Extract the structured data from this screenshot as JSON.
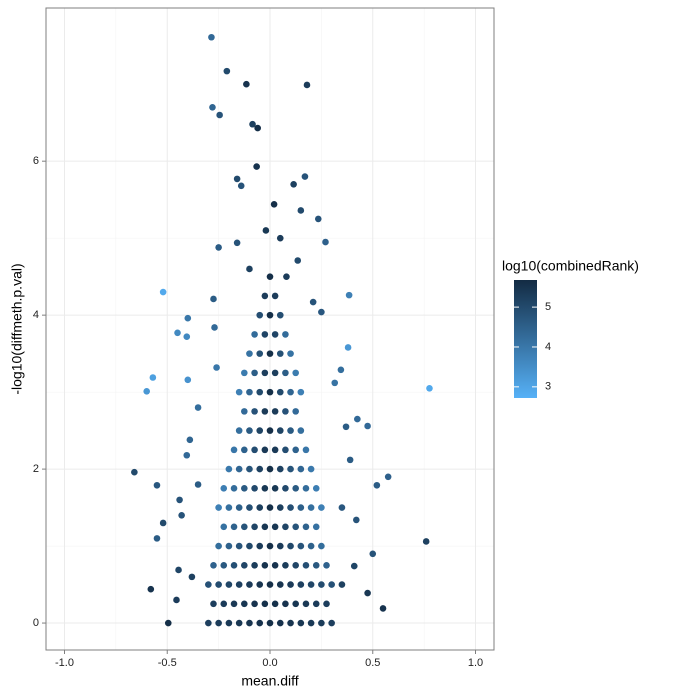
{
  "chart_data": {
    "type": "scatter",
    "x_label": "mean.diff",
    "y_label": "-log10(diffmeth.p.val)",
    "color_label": "log10(combinedRank)",
    "xlim": [
      -1.09,
      1.09
    ],
    "ylim": [
      -0.35,
      7.99
    ],
    "colorlim": [
      2.72,
      5.68
    ],
    "xticks": [
      {
        "value": -1.0,
        "label": "-1.0"
      },
      -0.5,
      {
        "value": 0,
        "label": "0.0"
      },
      0.5,
      {
        "value": 1.0,
        "label": "1.0"
      }
    ],
    "yticks": [
      0,
      2,
      4,
      6
    ],
    "color_ticks": [
      3,
      4,
      5
    ],
    "colorscale": [
      "#56B1F7",
      "#132B43"
    ],
    "grid": true,
    "x": [
      -0.3,
      -0.25,
      -0.2,
      -0.15,
      -0.1,
      -0.05,
      0,
      0.05,
      0.1,
      0.15,
      0.2,
      0.25,
      0.3,
      -0.275,
      -0.225,
      -0.175,
      -0.125,
      -0.075,
      -0.025,
      0.025,
      0.075,
      0.125,
      0.175,
      0.225,
      0.275,
      -0.3,
      -0.25,
      -0.2,
      -0.15,
      -0.1,
      -0.05,
      0,
      0.05,
      0.1,
      0.15,
      0.2,
      0.25,
      0.3,
      -0.275,
      -0.225,
      -0.175,
      -0.125,
      -0.075,
      -0.025,
      0.025,
      0.075,
      0.125,
      0.175,
      0.225,
      0.275,
      -0.25,
      -0.2,
      -0.15,
      -0.1,
      -0.05,
      0,
      0.05,
      0.1,
      0.15,
      0.2,
      0.25,
      -0.225,
      -0.175,
      -0.125,
      -0.075,
      -0.025,
      0.025,
      0.075,
      0.125,
      0.175,
      0.225,
      -0.25,
      -0.2,
      -0.15,
      -0.1,
      -0.05,
      0,
      0.05,
      0.1,
      0.15,
      0.2,
      0.25,
      -0.225,
      -0.175,
      -0.125,
      -0.075,
      -0.025,
      0.025,
      0.075,
      0.125,
      0.175,
      0.225,
      -0.2,
      -0.15,
      -0.1,
      -0.05,
      0,
      0.05,
      0.1,
      0.15,
      0.2,
      -0.175,
      -0.125,
      -0.075,
      -0.025,
      0.025,
      0.075,
      0.125,
      0.175,
      -0.15,
      -0.1,
      -0.05,
      0,
      0.05,
      0.1,
      0.15,
      -0.125,
      -0.075,
      -0.025,
      0.025,
      0.075,
      0.125,
      -0.15,
      -0.1,
      -0.05,
      0,
      0.05,
      0.1,
      0.15,
      -0.125,
      -0.075,
      -0.025,
      0.025,
      0.075,
      0.125,
      -0.1,
      -0.05,
      0,
      0.05,
      0.1,
      -0.075,
      -0.025,
      0.025,
      0.075,
      -0.05,
      0,
      0.05,
      -0.025,
      0.025,
      0,
      -0.285,
      -0.21,
      -0.115,
      0.18,
      -0.28,
      -0.245,
      -0.085,
      -0.06,
      -0.065,
      -0.16,
      -0.14,
      0.17,
      0.115,
      0.02,
      0.15,
      0.235,
      -0.52,
      0.385,
      -0.4,
      -0.45,
      -0.405,
      -0.57,
      -0.6,
      -0.4,
      0.38,
      0.776,
      -0.66,
      -0.55,
      0.575,
      0.76,
      -0.52,
      -0.55,
      -0.58,
      0.55,
      -0.495,
      0.5,
      0.475,
      0.425,
      0.37,
      0.52,
      0.475,
      -0.16,
      -0.25,
      0.27,
      0.135,
      -0.275,
      0.21,
      0.25,
      -0.27,
      -0.26,
      0.315,
      0.345,
      -0.35,
      -0.39,
      -0.405,
      0.39,
      -0.44,
      -0.43,
      0.42,
      -0.445,
      0.41,
      -0.455,
      -0.02,
      0.05,
      -0.1,
      0.08,
      0.35,
      -0.38,
      0.35,
      -0.35
    ],
    "values": [
      0,
      0,
      0,
      0,
      0,
      0,
      0,
      0,
      0,
      0,
      0,
      0,
      0,
      0.25,
      0.25,
      0.25,
      0.25,
      0.25,
      0.25,
      0.25,
      0.25,
      0.25,
      0.25,
      0.25,
      0.25,
      0.5,
      0.5,
      0.5,
      0.5,
      0.5,
      0.5,
      0.5,
      0.5,
      0.5,
      0.5,
      0.5,
      0.5,
      0.5,
      0.75,
      0.75,
      0.75,
      0.75,
      0.75,
      0.75,
      0.75,
      0.75,
      0.75,
      0.75,
      0.75,
      0.75,
      1,
      1,
      1,
      1,
      1,
      1,
      1,
      1,
      1,
      1,
      1,
      1.25,
      1.25,
      1.25,
      1.25,
      1.25,
      1.25,
      1.25,
      1.25,
      1.25,
      1.25,
      1.5,
      1.5,
      1.5,
      1.5,
      1.5,
      1.5,
      1.5,
      1.5,
      1.5,
      1.5,
      1.5,
      1.75,
      1.75,
      1.75,
      1.75,
      1.75,
      1.75,
      1.75,
      1.75,
      1.75,
      1.75,
      2,
      2,
      2,
      2,
      2,
      2,
      2,
      2,
      2,
      2.25,
      2.25,
      2.25,
      2.25,
      2.25,
      2.25,
      2.25,
      2.25,
      2.5,
      2.5,
      2.5,
      2.5,
      2.5,
      2.5,
      2.5,
      2.75,
      2.75,
      2.75,
      2.75,
      2.75,
      2.75,
      3,
      3,
      3,
      3,
      3,
      3,
      3,
      3.25,
      3.25,
      3.25,
      3.25,
      3.25,
      3.25,
      3.5,
      3.5,
      3.5,
      3.5,
      3.5,
      3.75,
      3.75,
      3.75,
      3.75,
      4,
      4,
      4,
      4.25,
      4.25,
      4.5,
      7.61,
      7.17,
      7.0,
      6.99,
      6.7,
      6.6,
      6.48,
      6.43,
      5.93,
      5.77,
      5.68,
      5.8,
      5.7,
      5.44,
      5.36,
      5.25,
      4.3,
      4.26,
      3.96,
      3.77,
      3.72,
      3.19,
      3.01,
      3.16,
      3.58,
      3.05,
      1.96,
      1.79,
      1.9,
      1.06,
      1.3,
      1.1,
      0.44,
      0.19,
      0.0,
      0.9,
      2.56,
      2.65,
      2.55,
      1.79,
      0.39,
      4.94,
      4.88,
      4.95,
      4.71,
      4.21,
      4.17,
      4.04,
      3.84,
      3.32,
      3.12,
      3.29,
      2.8,
      2.38,
      2.18,
      2.12,
      1.6,
      1.4,
      1.34,
      0.69,
      0.74,
      0.3,
      5.1,
      5.0,
      4.6,
      4.5,
      0.5,
      0.6,
      1.5,
      1.8
    ],
    "color_values": [
      5.24,
      5.3,
      5.36,
      5.42,
      5.48,
      5.54,
      5.6,
      5.54,
      5.48,
      5.42,
      5.36,
      5.3,
      5.24,
      5.26,
      5.32,
      5.38,
      5.44,
      5.5,
      5.57,
      5.57,
      5.5,
      5.44,
      5.38,
      5.32,
      5.26,
      4.83,
      4.95,
      5.08,
      5.21,
      5.34,
      5.47,
      5.6,
      5.47,
      5.34,
      5.21,
      5.08,
      4.95,
      4.83,
      4.46,
      4.67,
      4.88,
      5.08,
      5.29,
      5.5,
      5.5,
      5.29,
      5.08,
      4.88,
      4.67,
      4.46,
      4.21,
      4.49,
      4.77,
      5.04,
      5.32,
      5.6,
      5.32,
      5.04,
      4.77,
      4.49,
      4.21,
      4.13,
      4.46,
      4.78,
      5.11,
      5.44,
      5.44,
      5.11,
      4.78,
      4.46,
      4.13,
      3.8,
      4.16,
      4.52,
      4.88,
      5.24,
      5.6,
      5.24,
      4.88,
      4.52,
      4.16,
      3.8,
      3.84,
      4.23,
      4.62,
      5.01,
      5.4,
      5.4,
      5.01,
      4.62,
      4.23,
      3.84,
      3.96,
      4.37,
      4.78,
      5.19,
      5.6,
      5.19,
      4.78,
      4.37,
      3.96,
      4.02,
      4.47,
      4.92,
      5.37,
      5.37,
      4.92,
      4.47,
      4.02,
      4.18,
      4.65,
      5.13,
      5.6,
      5.13,
      4.65,
      4.18,
      4.28,
      4.81,
      5.33,
      5.33,
      4.81,
      4.28,
      3.8,
      4.4,
      5.0,
      5.6,
      5.0,
      4.4,
      3.8,
      3.9,
      4.56,
      5.25,
      5.25,
      4.56,
      3.9,
      4.1,
      4.85,
      5.6,
      4.85,
      4.1,
      4.25,
      5.1,
      5.1,
      4.25,
      4.9,
      5.6,
      4.9,
      5.3,
      5.3,
      5.6,
      4.3,
      5.0,
      5.5,
      5.3,
      4.4,
      4.8,
      5.2,
      5.6,
      5.5,
      5.0,
      4.8,
      4.8,
      5.2,
      5.6,
      5.0,
      4.8,
      2.9,
      3.8,
      4.0,
      3.6,
      3.6,
      3.1,
      3.3,
      3.4,
      3.3,
      2.9,
      5.0,
      4.7,
      4.5,
      5.2,
      5.0,
      4.6,
      5.5,
      5.5,
      5.6,
      4.8,
      4.3,
      4.3,
      4.6,
      4.6,
      5.4,
      4.8,
      4.6,
      4.5,
      5.0,
      4.6,
      4.8,
      4.7,
      4.3,
      4.0,
      4.1,
      4.2,
      4.2,
      4.4,
      4.3,
      4.6,
      4.8,
      4.8,
      4.8,
      5.1,
      5.1,
      5.3,
      5.4,
      5.3,
      5.2,
      5.3,
      5.2,
      5.2,
      4.7,
      4.6
    ]
  }
}
